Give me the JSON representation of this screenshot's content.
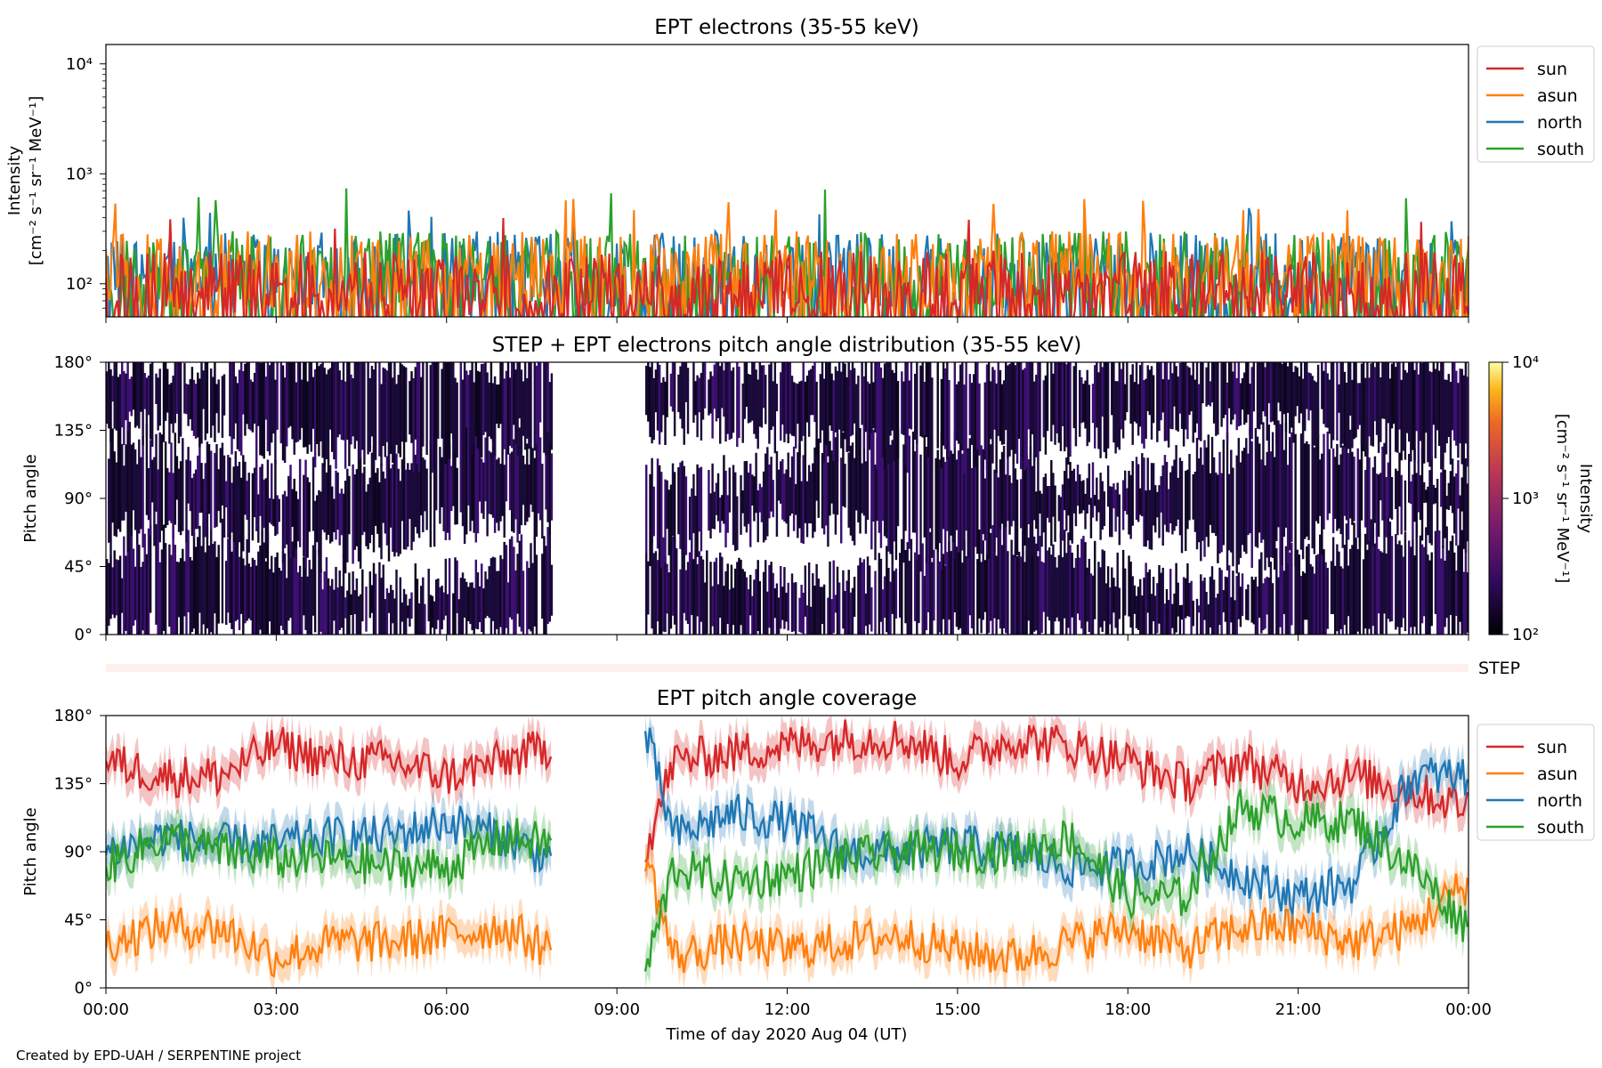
{
  "credit": "Created by EPD-UAH / SERPENTINE project",
  "colors": {
    "sun": "#d62728",
    "asun": "#ff7f0e",
    "north": "#1f77b4",
    "south": "#2ca02c"
  },
  "chart_data": [
    {
      "type": "line",
      "title": "EPT electrons (35-55 keV)",
      "ylabel_line1": "Intensity",
      "ylabel_line2": "[cm⁻² s⁻¹ sr⁻¹ MeV⁻¹]",
      "yscale": "log",
      "ylim": [
        50,
        15000
      ],
      "yticks": [
        {
          "value": 100,
          "label": "10²"
        },
        {
          "value": 1000,
          "label": "10³"
        },
        {
          "value": 10000,
          "label": "10⁴"
        }
      ],
      "xlim_hours": [
        0,
        24
      ],
      "legend": [
        "sun",
        "asun",
        "north",
        "south"
      ],
      "legend_placement": "outside-right",
      "series_summary": {
        "sun": {
          "typical_range": [
            50,
            200
          ],
          "peak": 450
        },
        "asun": {
          "typical_range": [
            60,
            300
          ],
          "peak": 600
        },
        "north": {
          "typical_range": [
            60,
            300
          ],
          "peak": 500
        },
        "south": {
          "typical_range": [
            60,
            300
          ],
          "peak": 800
        }
      }
    },
    {
      "type": "heatmap",
      "title": "STEP + EPT electrons pitch angle distribution (35-55 keV)",
      "ylabel": "Pitch angle",
      "ylim": [
        0,
        180
      ],
      "yticks": [
        "0°",
        "45°",
        "90°",
        "135°",
        "180°"
      ],
      "colorbar": {
        "label_line1": "Intensity",
        "label_line2": "[cm⁻² s⁻¹ sr⁻¹ MeV⁻¹]",
        "scale": "log",
        "range": [
          100,
          10000
        ],
        "ticks": [
          "10²",
          "10³",
          "10⁴"
        ]
      },
      "data_gap_hours": [
        7.85,
        9.5
      ],
      "xlim_hours": [
        0,
        24
      ]
    },
    {
      "type": "strip",
      "label": "STEP"
    },
    {
      "type": "line",
      "title": "EPT pitch angle coverage",
      "ylabel": "Pitch angle",
      "xlabel": "Time of day 2020 Aug 04 (UT)",
      "ylim": [
        0,
        180
      ],
      "yticks": [
        "0°",
        "45°",
        "90°",
        "135°",
        "180°"
      ],
      "xticks": [
        "00:00",
        "03:00",
        "06:00",
        "09:00",
        "12:00",
        "15:00",
        "18:00",
        "21:00",
        "00:00"
      ],
      "xlim_hours": [
        0,
        24
      ],
      "legend": [
        "sun",
        "asun",
        "north",
        "south"
      ],
      "legend_placement": "outside-right",
      "data_gap_hours": [
        7.85,
        9.5
      ],
      "series": [
        {
          "name": "sun",
          "x": [
            0,
            1,
            2,
            3,
            4,
            5,
            6,
            7,
            7.85,
            9.5,
            10,
            11,
            12,
            13,
            14,
            15,
            16,
            17,
            18,
            19,
            20,
            21,
            22,
            23,
            24
          ],
          "values": [
            150,
            140,
            140,
            160,
            150,
            150,
            140,
            150,
            160,
            90,
            150,
            155,
            160,
            165,
            165,
            150,
            165,
            160,
            150,
            135,
            150,
            135,
            140,
            130,
            120
          ]
        },
        {
          "name": "asun",
          "x": [
            0,
            1,
            2,
            3,
            4,
            5,
            6,
            7,
            7.85,
            9.5,
            10,
            11,
            12,
            13,
            14,
            15,
            16,
            17,
            18,
            19,
            20,
            21,
            22,
            23,
            24
          ],
          "values": [
            30,
            40,
            40,
            20,
            30,
            30,
            35,
            40,
            25,
            90,
            20,
            30,
            25,
            30,
            35,
            25,
            20,
            30,
            40,
            25,
            40,
            40,
            30,
            40,
            70
          ]
        },
        {
          "name": "north",
          "x": [
            0,
            1,
            2,
            3,
            4,
            5,
            6,
            7,
            7.85,
            9.5,
            10,
            11,
            12,
            13,
            14,
            15,
            16,
            17,
            18,
            19,
            20,
            21,
            22,
            23,
            24
          ],
          "values": [
            90,
            100,
            95,
            95,
            100,
            100,
            110,
            100,
            85,
            170,
            100,
            115,
            110,
            90,
            90,
            95,
            90,
            80,
            80,
            90,
            75,
            60,
            70,
            140,
            140
          ]
        },
        {
          "name": "south",
          "x": [
            0,
            1,
            2,
            3,
            4,
            5,
            6,
            7,
            7.85,
            9.5,
            10,
            11,
            12,
            13,
            14,
            15,
            16,
            17,
            18,
            19,
            20,
            21,
            22,
            23,
            24
          ],
          "values": [
            80,
            100,
            90,
            85,
            85,
            80,
            80,
            100,
            95,
            10,
            80,
            70,
            75,
            85,
            90,
            90,
            90,
            100,
            60,
            60,
            120,
            110,
            110,
            80,
            40
          ]
        }
      ]
    }
  ]
}
